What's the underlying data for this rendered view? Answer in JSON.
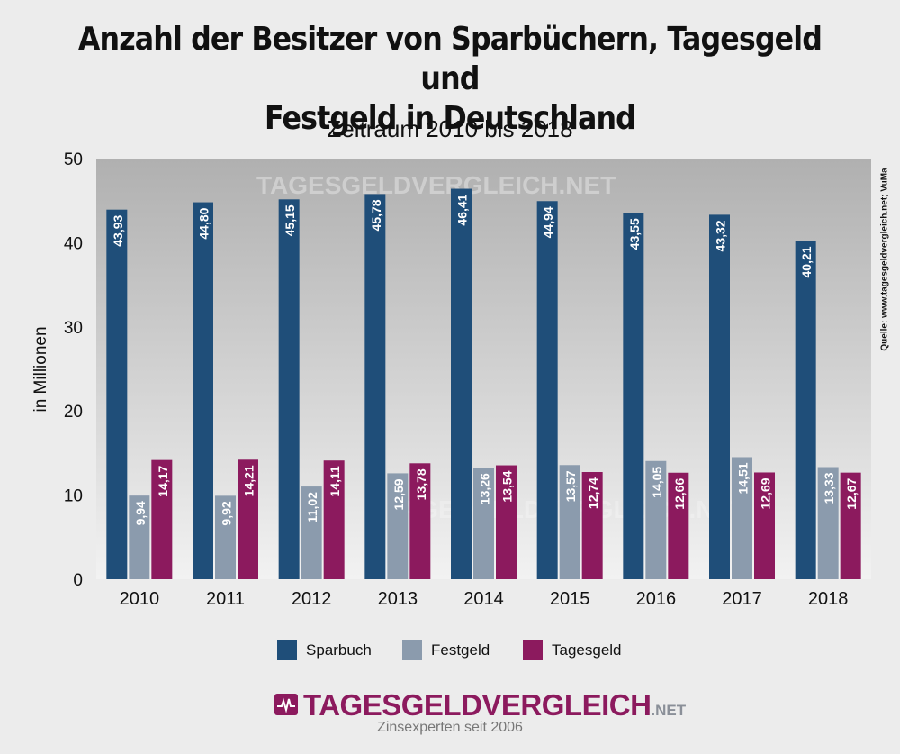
{
  "page": {
    "title_line1": "Anzahl der Besitzer von Sparbüchern, Tagesgeld und",
    "title_line2": "Festgeld in Deutschland",
    "subtitle": "Zeitraum 2010 bis 2018",
    "source": "Quelle: www.tagesgeldvergleich.net;  VuMa",
    "brand_name": "TAGESGELDVERGLEICH",
    "brand_suffix": ".NET",
    "brand_tagline": "Zinsexperten seit 2006",
    "watermark": "TAGESGELDVERGLEICH.NET"
  },
  "colors": {
    "Sparbuch": "#1f4e79",
    "Festgeld": "#8b9bad",
    "Tagesgeld": "#8c1a5e",
    "plot_bg_top": "#b0b0b0",
    "plot_bg_bottom": "#f2f2f2"
  },
  "chart_data": {
    "type": "bar",
    "title": "Anzahl der Besitzer von Sparbüchern, Tagesgeld und Festgeld in Deutschland",
    "subtitle": "Zeitraum 2010 bis 2018",
    "xlabel": "",
    "ylabel": "in Millionen",
    "ylim": [
      0,
      50
    ],
    "yticks": [
      0,
      10,
      20,
      30,
      40,
      50
    ],
    "categories": [
      "2010",
      "2011",
      "2012",
      "2013",
      "2014",
      "2015",
      "2016",
      "2017",
      "2018"
    ],
    "series": [
      {
        "name": "Sparbuch",
        "values": [
          43.93,
          44.8,
          45.15,
          45.78,
          46.41,
          44.94,
          43.55,
          43.32,
          40.21
        ],
        "labels": [
          "43,93",
          "44,80",
          "45,15",
          "45,78",
          "46,41",
          "44,94",
          "43,55",
          "43,32",
          "40,21"
        ]
      },
      {
        "name": "Festgeld",
        "values": [
          9.94,
          9.92,
          11.02,
          12.59,
          13.26,
          13.57,
          14.05,
          14.51,
          13.33
        ],
        "labels": [
          "9,94",
          "9,92",
          "11,02",
          "12,59",
          "13,26",
          "13,57",
          "14,05",
          "14,51",
          "13,33"
        ]
      },
      {
        "name": "Tagesgeld",
        "values": [
          14.17,
          14.21,
          14.11,
          13.78,
          13.54,
          12.74,
          12.66,
          12.69,
          12.67
        ],
        "labels": [
          "14,17",
          "14,21",
          "14,11",
          "13,78",
          "13,54",
          "12,74",
          "12,66",
          "12,69",
          "12,67"
        ]
      }
    ],
    "legend": [
      "Sparbuch",
      "Festgeld",
      "Tagesgeld"
    ],
    "legend_position": "bottom",
    "grid": false
  }
}
